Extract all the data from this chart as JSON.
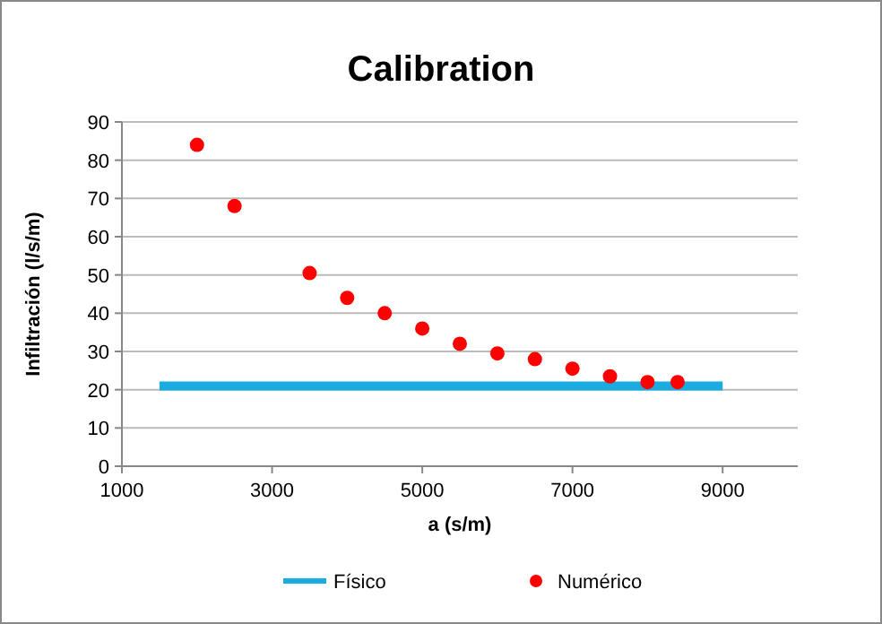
{
  "chart_data": {
    "type": "scatter",
    "title": "Calibration",
    "xlabel": "a  (s/m)",
    "ylabel": "Infiltración  (l/s/m)",
    "xlim": [
      1000,
      10000
    ],
    "xticks": [
      1000,
      3000,
      5000,
      7000,
      9000
    ],
    "ylim": [
      0,
      90
    ],
    "yticks": [
      0,
      10,
      20,
      30,
      40,
      50,
      60,
      70,
      80,
      90
    ],
    "grid": "y",
    "legend": "bottom",
    "series": [
      {
        "name": "Físico",
        "type": "line",
        "color": "#1aabe0",
        "x": [
          1500,
          9000
        ],
        "values": [
          21,
          21
        ],
        "marker": "none"
      },
      {
        "name": "Numérico",
        "color": "#ff0000",
        "marker": "circle",
        "x": [
          2000,
          2500,
          3500,
          4000,
          4500,
          5000,
          5500,
          6000,
          6500,
          7000,
          7500,
          8000,
          8400
        ],
        "values": [
          84,
          68,
          50.5,
          44,
          40,
          36,
          32,
          29.5,
          28,
          25.5,
          23.5,
          22,
          22
        ]
      }
    ]
  }
}
